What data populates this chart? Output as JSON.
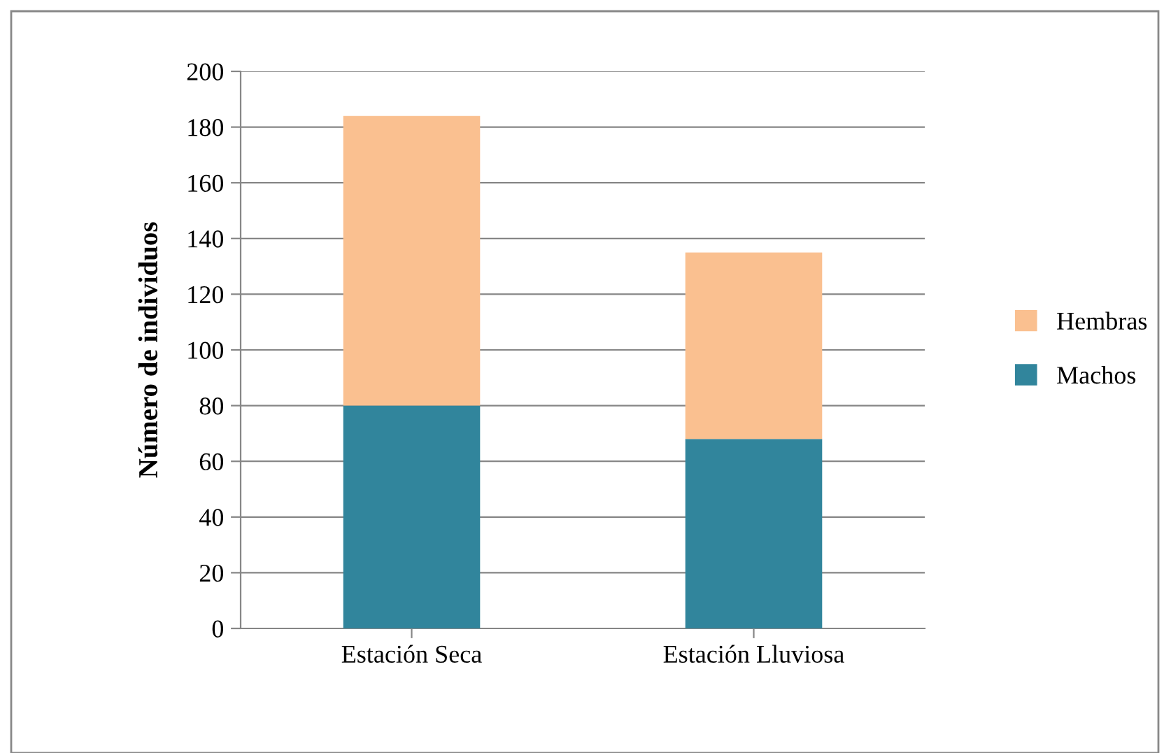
{
  "chart_data": {
    "type": "bar",
    "stacked": true,
    "ylabel": "Número de individuos",
    "categories": [
      "Estación Seca",
      "Estación Lluviosa"
    ],
    "series": [
      {
        "name": "Machos",
        "color": "#31859c",
        "values": [
          80,
          68
        ]
      },
      {
        "name": "Hembras",
        "color": "#fac090",
        "values": [
          104,
          67
        ]
      }
    ],
    "ylim": [
      0,
      200
    ],
    "yticks": [
      0,
      20,
      40,
      60,
      80,
      100,
      120,
      140,
      160,
      180,
      200
    ],
    "grid": "y",
    "legend": "right"
  }
}
